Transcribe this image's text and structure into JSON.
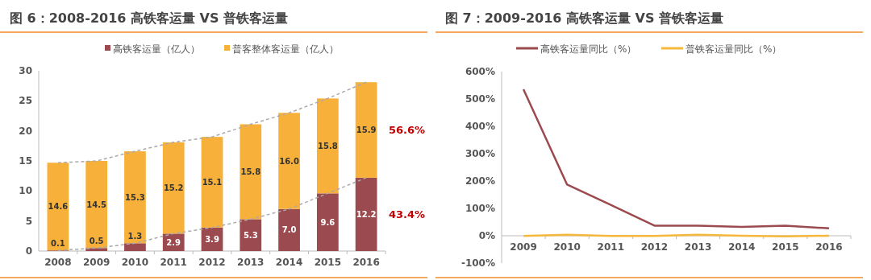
{
  "chart_data": [
    {
      "type": "bar",
      "stacked": true,
      "title": "图 6：2008-2016 高铁客运量 VS 普铁客运量",
      "categories": [
        "2008",
        "2009",
        "2010",
        "2011",
        "2012",
        "2013",
        "2014",
        "2015",
        "2016"
      ],
      "series": [
        {
          "name": "高铁客运量（亿人）",
          "color": "#9b4a4f",
          "values": [
            0.1,
            0.5,
            1.3,
            2.9,
            3.9,
            5.3,
            7.0,
            9.6,
            12.2
          ],
          "value_labels": [
            "0.1",
            "0.5",
            "1.3",
            "2.9",
            "3.9",
            "5.3",
            "7.0",
            "9.6",
            "12.2"
          ]
        },
        {
          "name": "普客整体客运量（亿人）",
          "color": "#f7b13b",
          "values": [
            14.6,
            14.5,
            15.3,
            15.2,
            15.1,
            15.8,
            16.0,
            15.8,
            15.9
          ],
          "value_labels": [
            "14.6",
            "14.5",
            "15.3",
            "15.2",
            "15.1",
            "15.8",
            "16.0",
            "15.8",
            "15.9"
          ]
        },
        {
          "type": "line",
          "line_style": "dashed",
          "color": "#aaaaaa",
          "values": [
            0.1,
            0.5,
            1.3,
            2.9,
            3.9,
            5.3,
            7.0,
            9.6,
            12.2
          ]
        },
        {
          "type": "line",
          "line_style": "dashed",
          "color": "#aaaaaa",
          "values": [
            14.7,
            15.0,
            16.6,
            18.1,
            19.0,
            21.1,
            23.0,
            25.4,
            28.1
          ]
        }
      ],
      "ylim": [
        0,
        30
      ],
      "yticks": [
        0,
        5,
        10,
        15,
        20,
        25,
        30
      ],
      "legend": "top",
      "annotations": [
        "56.6%",
        "43.4%"
      ]
    },
    {
      "type": "line",
      "title": "图 7：2009-2016 高铁客运量 VS 普铁客运量",
      "categories": [
        "2009",
        "2010",
        "2011",
        "2012",
        "2013",
        "2014",
        "2015",
        "2016"
      ],
      "series": [
        {
          "name": "高铁客运量同比（%）",
          "color": "#9b4a4f",
          "values": [
            535,
            187,
            113,
            37,
            37,
            32,
            37,
            27
          ]
        },
        {
          "name": "普铁客运量同比（%）",
          "color": "#f5b83d",
          "values": [
            -1,
            4,
            -1,
            -1,
            4,
            0,
            -2,
            0
          ]
        }
      ],
      "ylim": [
        -100,
        600
      ],
      "yticks": [
        {
          "value": -100,
          "label": "-100%"
        },
        {
          "value": 0,
          "label": "0%"
        },
        {
          "value": 100,
          "label": "100%"
        },
        {
          "value": 200,
          "label": "200%"
        },
        {
          "value": 300,
          "label": "300%"
        },
        {
          "value": 400,
          "label": "400%"
        },
        {
          "value": 500,
          "label": "500%"
        },
        {
          "value": 600,
          "label": "600%"
        }
      ],
      "legend": "top"
    }
  ]
}
